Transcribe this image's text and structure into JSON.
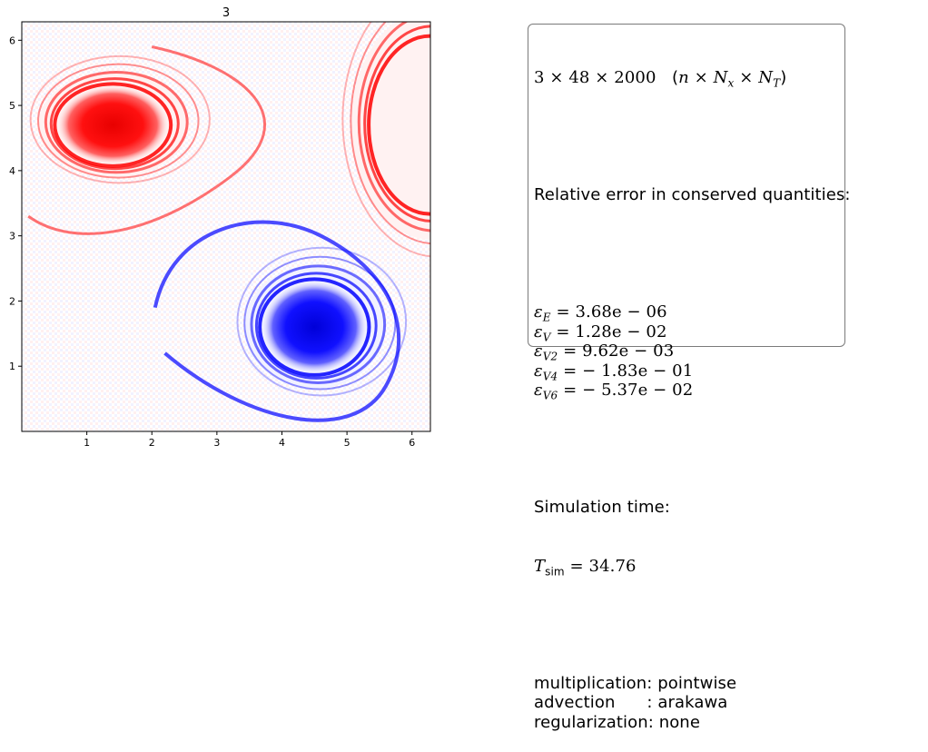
{
  "colors": {
    "positive": "#ff0000",
    "negative": "#0000ff",
    "neutral": "#ffffff",
    "frame": "#000000"
  },
  "chart_data": {
    "type": "heatmap",
    "title": "3",
    "colormap": "bwr",
    "xlim": [
      0,
      6.283
    ],
    "ylim": [
      0,
      6.283
    ],
    "xticks": [
      "1",
      "2",
      "3",
      "4",
      "5",
      "6"
    ],
    "yticks": [
      "1",
      "2",
      "3",
      "4",
      "5",
      "6"
    ],
    "xtick_values": [
      1,
      2,
      3,
      4,
      5,
      6
    ],
    "ytick_values": [
      1,
      2,
      3,
      4,
      5,
      6
    ],
    "features": [
      {
        "sign": "positive",
        "center": [
          1.4,
          4.7
        ],
        "radii": [
          0.85,
          0.6
        ]
      },
      {
        "sign": "negative",
        "center": [
          4.5,
          1.6
        ],
        "radii": [
          0.8,
          0.7
        ]
      },
      {
        "sign": "positive",
        "center": [
          6.28,
          4.7
        ],
        "radii": [
          0.9,
          1.3
        ]
      }
    ]
  },
  "info": {
    "dims_formula": "3 × 48 × 2000",
    "dims_legend_n": "n",
    "dims_legend_nx": "N",
    "dims_legend_nx_sub": "x",
    "dims_legend_nt": "N",
    "dims_legend_nt_sub": "T",
    "error_heading": "Relative error in conserved quantities:",
    "errors": [
      {
        "symbol": "ε",
        "sub": "E",
        "value": "3.68e − 06"
      },
      {
        "symbol": "ε",
        "sub": "V",
        "value": "1.28e − 02"
      },
      {
        "symbol": "ε",
        "sub": "V2",
        "value": "9.62e − 03"
      },
      {
        "symbol": "ε",
        "sub": "V4",
        "value": "− 1.83e − 01"
      },
      {
        "symbol": "ε",
        "sub": "V6",
        "value": "− 5.37e − 02"
      }
    ],
    "sim_heading": "Simulation time:",
    "sim_symbol": "T",
    "sim_sub": "sim",
    "sim_value": "34.76",
    "settings": [
      {
        "label": "multiplication: pointwise"
      },
      {
        "label": "advection      : arakawa"
      },
      {
        "label": "regularization: none"
      }
    ]
  }
}
